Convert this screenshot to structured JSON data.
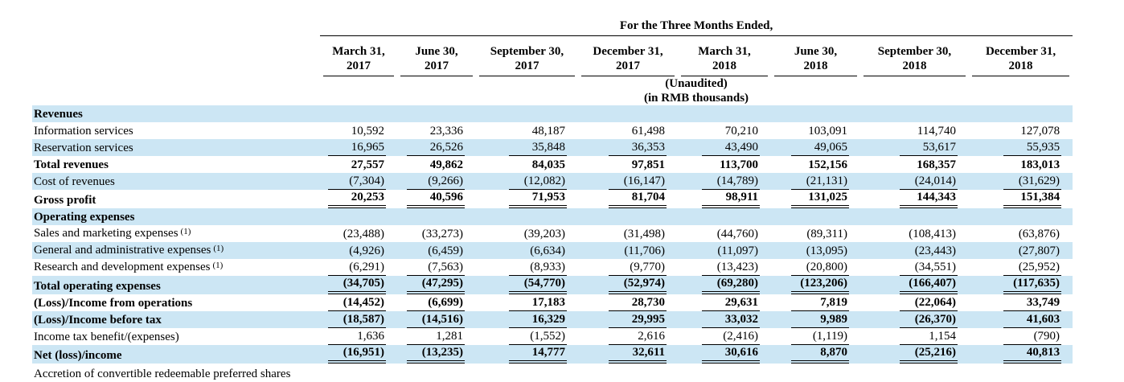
{
  "table": {
    "spanner": "For the Three Months Ended,",
    "subheaders": [
      "(Unaudited)",
      "(in RMB thousands)"
    ],
    "columns": [
      {
        "line1": "March 31,",
        "line2": "2017"
      },
      {
        "line1": "June 30,",
        "line2": "2017"
      },
      {
        "line1": "September 30,",
        "line2": "2017"
      },
      {
        "line1": "December 31,",
        "line2": "2017"
      },
      {
        "line1": "March 31,",
        "line2": "2018"
      },
      {
        "line1": "June 30,",
        "line2": "2018"
      },
      {
        "line1": "September 30,",
        "line2": "2018"
      },
      {
        "line1": "December 31,",
        "line2": "2018"
      }
    ],
    "rows": [
      {
        "label": "Revenues",
        "style": "section",
        "values": []
      },
      {
        "label": "Information services",
        "style": "plain",
        "values": [
          "10,592",
          "23,336",
          "48,187",
          "61,498",
          "70,210",
          "103,091",
          "114,740",
          "127,078"
        ]
      },
      {
        "label": "Reservation services",
        "style": "plain",
        "underline": "single",
        "values": [
          "16,965",
          "26,526",
          "35,848",
          "36,353",
          "43,490",
          "49,065",
          "53,617",
          "55,935"
        ]
      },
      {
        "label": "Total revenues",
        "style": "bold",
        "values": [
          "27,557",
          "49,862",
          "84,035",
          "97,851",
          "113,700",
          "152,156",
          "168,357",
          "183,013"
        ]
      },
      {
        "label": "Cost of revenues",
        "style": "plain",
        "underline": "single",
        "values": [
          "(7,304)",
          "(9,266)",
          "(12,082)",
          "(16,147)",
          "(14,789)",
          "(21,131)",
          "(24,014)",
          "(31,629)"
        ]
      },
      {
        "label": "Gross profit",
        "style": "bold",
        "underline": "double",
        "values": [
          "20,253",
          "40,596",
          "71,953",
          "81,704",
          "98,911",
          "131,025",
          "144,343",
          "151,384"
        ]
      },
      {
        "label": "Operating expenses",
        "style": "section",
        "values": []
      },
      {
        "label": "Sales and marketing expenses",
        "note": "(1)",
        "style": "plain",
        "values": [
          "(23,488)",
          "(33,273)",
          "(39,203)",
          "(31,498)",
          "(44,760)",
          "(89,311)",
          "(108,413)",
          "(63,876)"
        ]
      },
      {
        "label": "General and administrative expenses",
        "note": "(1)",
        "style": "plain",
        "values": [
          "(4,926)",
          "(6,459)",
          "(6,634)",
          "(11,706)",
          "(11,097)",
          "(13,095)",
          "(23,443)",
          "(27,807)"
        ]
      },
      {
        "label": "Research and development expenses",
        "note": "(1)",
        "style": "plain",
        "underline": "single",
        "values": [
          "(6,291)",
          "(7,563)",
          "(8,933)",
          "(9,770)",
          "(13,423)",
          "(20,800)",
          "(34,551)",
          "(25,952)"
        ]
      },
      {
        "label": "Total operating expenses",
        "style": "bold",
        "underline": "double",
        "values": [
          "(34,705)",
          "(47,295)",
          "(54,770)",
          "(52,974)",
          "(69,280)",
          "(123,206)",
          "(166,407)",
          "(117,635)"
        ]
      },
      {
        "label": "(Loss)/Income from operations",
        "style": "bold",
        "underline": "single",
        "values": [
          "(14,452)",
          "(6,699)",
          "17,183",
          "28,730",
          "29,631",
          "7,819",
          "(22,064)",
          "33,749"
        ]
      },
      {
        "label": "(Loss)/Income before tax",
        "style": "bold",
        "underline": "single",
        "values": [
          "(18,587)",
          "(14,516)",
          "16,329",
          "29,995",
          "33,032",
          "9,989",
          "(26,370)",
          "41,603"
        ]
      },
      {
        "label": "Income tax benefit/(expenses)",
        "style": "plain",
        "underline": "single",
        "values": [
          "1,636",
          "1,281",
          "(1,552)",
          "2,616",
          "(2,416)",
          "(1,119)",
          "1,154",
          "(790)"
        ]
      },
      {
        "label": "Net (loss)/income",
        "style": "bold",
        "underline": "double",
        "values": [
          "(16,951)",
          "(13,235)",
          "14,777",
          "32,611",
          "30,616",
          "8,870",
          "(25,216)",
          "40,813"
        ]
      }
    ],
    "clipped_footer": "Accretion of convertible redeemable preferred shares"
  }
}
